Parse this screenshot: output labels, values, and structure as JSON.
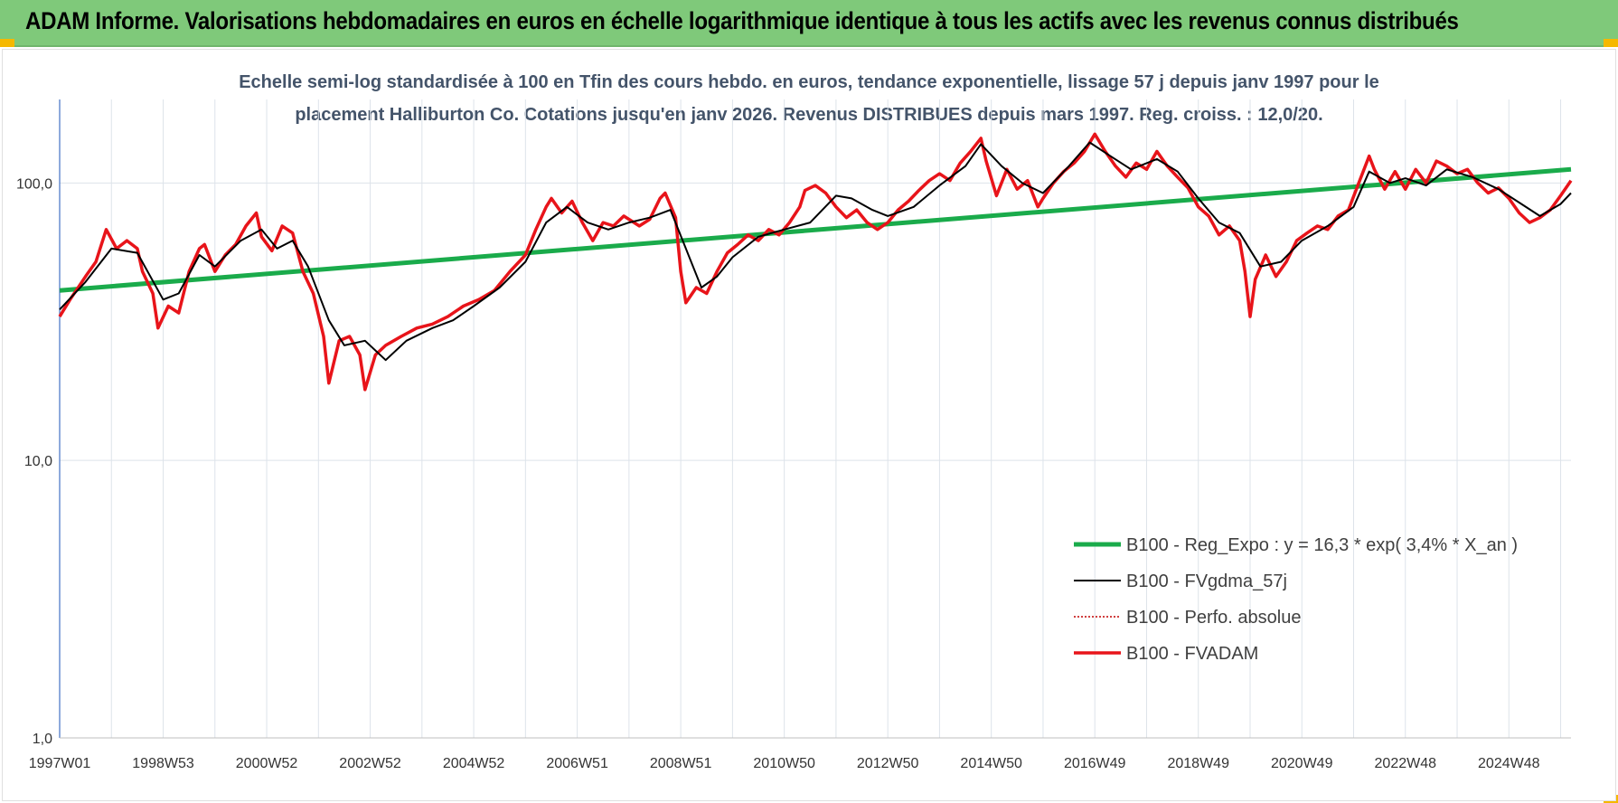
{
  "header": {
    "title": "ADAM Informe. Valorisations hebdomadaires en euros en échelle logarithmique identique à tous les actifs avec les revenus connus distribués"
  },
  "colors": {
    "banner": "#7fc97a",
    "corner": "#f5b800",
    "title_text": "#44546a",
    "reg_expo": "#1aab4b",
    "fvgdma": "#000000",
    "perfo": "#c00000",
    "fvadam": "#e8141a",
    "grid": "#dde3ea"
  },
  "chart_data": {
    "type": "line",
    "title_line1": "Echelle semi-log standardisée à 100 en Tfin des cours hebdo. en euros, tendance exponentielle, lissage 57 j depuis janv 1997 pour le",
    "title_line2": "placement Halliburton Co. Cotations jusqu'en janv 2026.  Revenus DISTRIBUES depuis mars 1997. Reg. croiss. : 12,0/20.",
    "y_scale": "log",
    "ylim": [
      1,
      200
    ],
    "xlim": [
      1997.0,
      2026.2
    ],
    "grid": true,
    "legend_position": "bottom-right",
    "y_ticks": [
      {
        "value": 1,
        "label": "1,0"
      },
      {
        "value": 10,
        "label": "10,0"
      },
      {
        "value": 100,
        "label": "100,0"
      }
    ],
    "x_ticks": [
      {
        "value": 1997.0,
        "label": "1997W01"
      },
      {
        "value": 1999.0,
        "label": "1998W53"
      },
      {
        "value": 2001.0,
        "label": "2000W52"
      },
      {
        "value": 2003.0,
        "label": "2002W52"
      },
      {
        "value": 2005.0,
        "label": "2004W52"
      },
      {
        "value": 2007.0,
        "label": "2006W51"
      },
      {
        "value": 2009.0,
        "label": "2008W51"
      },
      {
        "value": 2011.0,
        "label": "2010W50"
      },
      {
        "value": 2013.0,
        "label": "2012W50"
      },
      {
        "value": 2015.0,
        "label": "2014W50"
      },
      {
        "value": 2017.0,
        "label": "2016W49"
      },
      {
        "value": 2019.0,
        "label": "2018W49"
      },
      {
        "value": 2021.0,
        "label": "2020W49"
      },
      {
        "value": 2023.0,
        "label": "2022W48"
      },
      {
        "value": 2025.0,
        "label": "2024W48"
      }
    ],
    "series": [
      {
        "name": "B100 - Reg_Expo : y = 16,3 * exp( 3,4% *  X_an )",
        "style": "solid-thick",
        "points": [
          [
            1997.0,
            41.0
          ],
          [
            2026.2,
            112.0
          ]
        ]
      },
      {
        "name": "B100 - FVgdma_57j",
        "style": "solid-thin",
        "points": [
          [
            1997.0,
            35
          ],
          [
            1997.5,
            44
          ],
          [
            1998.0,
            58
          ],
          [
            1998.5,
            56
          ],
          [
            1999.0,
            38
          ],
          [
            1999.3,
            40
          ],
          [
            1999.7,
            55
          ],
          [
            2000.0,
            50
          ],
          [
            2000.5,
            62
          ],
          [
            2000.9,
            68
          ],
          [
            2001.2,
            58
          ],
          [
            2001.5,
            62
          ],
          [
            2001.8,
            50
          ],
          [
            2002.2,
            32
          ],
          [
            2002.5,
            26
          ],
          [
            2002.9,
            27
          ],
          [
            2003.3,
            23
          ],
          [
            2003.7,
            27
          ],
          [
            2004.2,
            30
          ],
          [
            2004.6,
            32
          ],
          [
            2005.0,
            36
          ],
          [
            2005.5,
            42
          ],
          [
            2006.0,
            52
          ],
          [
            2006.4,
            72
          ],
          [
            2006.8,
            82
          ],
          [
            2007.2,
            72
          ],
          [
            2007.6,
            68
          ],
          [
            2008.0,
            72
          ],
          [
            2008.4,
            75
          ],
          [
            2008.8,
            80
          ],
          [
            2009.1,
            58
          ],
          [
            2009.4,
            42
          ],
          [
            2009.7,
            46
          ],
          [
            2010.0,
            54
          ],
          [
            2010.5,
            64
          ],
          [
            2011.0,
            68
          ],
          [
            2011.5,
            72
          ],
          [
            2012.0,
            90
          ],
          [
            2012.3,
            88
          ],
          [
            2012.7,
            80
          ],
          [
            2013.0,
            76
          ],
          [
            2013.5,
            82
          ],
          [
            2014.0,
            98
          ],
          [
            2014.5,
            115
          ],
          [
            2014.8,
            138
          ],
          [
            2015.2,
            115
          ],
          [
            2015.6,
            100
          ],
          [
            2016.0,
            92
          ],
          [
            2016.5,
            115
          ],
          [
            2016.9,
            140
          ],
          [
            2017.3,
            125
          ],
          [
            2017.7,
            112
          ],
          [
            2018.2,
            122
          ],
          [
            2018.6,
            110
          ],
          [
            2019.0,
            88
          ],
          [
            2019.4,
            72
          ],
          [
            2019.8,
            66
          ],
          [
            2020.2,
            50
          ],
          [
            2020.6,
            52
          ],
          [
            2021.0,
            62
          ],
          [
            2021.5,
            70
          ],
          [
            2022.0,
            82
          ],
          [
            2022.3,
            110
          ],
          [
            2022.7,
            100
          ],
          [
            2023.0,
            104
          ],
          [
            2023.4,
            98
          ],
          [
            2023.8,
            112
          ],
          [
            2024.3,
            105
          ],
          [
            2024.8,
            95
          ],
          [
            2025.2,
            85
          ],
          [
            2025.6,
            76
          ],
          [
            2026.0,
            84
          ],
          [
            2026.2,
            92
          ]
        ]
      },
      {
        "name": "B100 - Perfo. absolue",
        "style": "dotted",
        "points": []
      },
      {
        "name": "B100 - FVADAM",
        "style": "solid-thick",
        "points": [
          [
            1997.0,
            33
          ],
          [
            1997.2,
            38
          ],
          [
            1997.5,
            46
          ],
          [
            1997.7,
            52
          ],
          [
            1997.9,
            68
          ],
          [
            1998.1,
            58
          ],
          [
            1998.3,
            62
          ],
          [
            1998.5,
            58
          ],
          [
            1998.6,
            48
          ],
          [
            1998.8,
            40
          ],
          [
            1998.9,
            30
          ],
          [
            1999.1,
            36
          ],
          [
            1999.3,
            34
          ],
          [
            1999.5,
            48
          ],
          [
            1999.7,
            58
          ],
          [
            1999.8,
            60
          ],
          [
            2000.0,
            48
          ],
          [
            2000.2,
            55
          ],
          [
            2000.4,
            60
          ],
          [
            2000.6,
            70
          ],
          [
            2000.8,
            78
          ],
          [
            2000.9,
            64
          ],
          [
            2001.1,
            57
          ],
          [
            2001.3,
            70
          ],
          [
            2001.5,
            66
          ],
          [
            2001.7,
            48
          ],
          [
            2001.9,
            40
          ],
          [
            2002.1,
            28
          ],
          [
            2002.2,
            19
          ],
          [
            2002.4,
            27
          ],
          [
            2002.6,
            28
          ],
          [
            2002.8,
            24
          ],
          [
            2002.9,
            18
          ],
          [
            2003.1,
            24
          ],
          [
            2003.3,
            26
          ],
          [
            2003.6,
            28
          ],
          [
            2003.9,
            30
          ],
          [
            2004.2,
            31
          ],
          [
            2004.5,
            33
          ],
          [
            2004.8,
            36
          ],
          [
            2005.1,
            38
          ],
          [
            2005.4,
            41
          ],
          [
            2005.7,
            48
          ],
          [
            2006.0,
            55
          ],
          [
            2006.2,
            68
          ],
          [
            2006.4,
            82
          ],
          [
            2006.5,
            88
          ],
          [
            2006.7,
            78
          ],
          [
            2006.9,
            86
          ],
          [
            2007.1,
            72
          ],
          [
            2007.3,
            62
          ],
          [
            2007.5,
            72
          ],
          [
            2007.7,
            70
          ],
          [
            2007.9,
            76
          ],
          [
            2008.2,
            70
          ],
          [
            2008.4,
            74
          ],
          [
            2008.6,
            88
          ],
          [
            2008.7,
            92
          ],
          [
            2008.9,
            75
          ],
          [
            2009.0,
            48
          ],
          [
            2009.1,
            37
          ],
          [
            2009.3,
            42
          ],
          [
            2009.5,
            40
          ],
          [
            2009.7,
            48
          ],
          [
            2009.9,
            56
          ],
          [
            2010.1,
            60
          ],
          [
            2010.3,
            65
          ],
          [
            2010.5,
            62
          ],
          [
            2010.7,
            68
          ],
          [
            2010.9,
            65
          ],
          [
            2011.1,
            72
          ],
          [
            2011.3,
            82
          ],
          [
            2011.4,
            94
          ],
          [
            2011.6,
            98
          ],
          [
            2011.8,
            92
          ],
          [
            2012.0,
            82
          ],
          [
            2012.2,
            75
          ],
          [
            2012.4,
            80
          ],
          [
            2012.6,
            72
          ],
          [
            2012.8,
            68
          ],
          [
            2013.0,
            72
          ],
          [
            2013.2,
            80
          ],
          [
            2013.4,
            86
          ],
          [
            2013.6,
            94
          ],
          [
            2013.8,
            102
          ],
          [
            2014.0,
            108
          ],
          [
            2014.2,
            102
          ],
          [
            2014.4,
            118
          ],
          [
            2014.6,
            130
          ],
          [
            2014.8,
            145
          ],
          [
            2014.9,
            120
          ],
          [
            2015.1,
            90
          ],
          [
            2015.3,
            112
          ],
          [
            2015.5,
            95
          ],
          [
            2015.7,
            102
          ],
          [
            2015.9,
            82
          ],
          [
            2016.0,
            88
          ],
          [
            2016.2,
            100
          ],
          [
            2016.4,
            110
          ],
          [
            2016.6,
            118
          ],
          [
            2016.8,
            130
          ],
          [
            2017.0,
            150
          ],
          [
            2017.2,
            130
          ],
          [
            2017.4,
            115
          ],
          [
            2017.6,
            105
          ],
          [
            2017.8,
            118
          ],
          [
            2018.0,
            112
          ],
          [
            2018.2,
            130
          ],
          [
            2018.4,
            115
          ],
          [
            2018.6,
            105
          ],
          [
            2018.8,
            96
          ],
          [
            2019.0,
            82
          ],
          [
            2019.2,
            76
          ],
          [
            2019.4,
            65
          ],
          [
            2019.6,
            70
          ],
          [
            2019.8,
            62
          ],
          [
            2019.9,
            48
          ],
          [
            2020.0,
            33
          ],
          [
            2020.1,
            45
          ],
          [
            2020.3,
            55
          ],
          [
            2020.5,
            46
          ],
          [
            2020.7,
            52
          ],
          [
            2020.9,
            62
          ],
          [
            2021.1,
            66
          ],
          [
            2021.3,
            70
          ],
          [
            2021.5,
            68
          ],
          [
            2021.7,
            76
          ],
          [
            2021.9,
            80
          ],
          [
            2022.1,
            100
          ],
          [
            2022.3,
            125
          ],
          [
            2022.4,
            112
          ],
          [
            2022.6,
            95
          ],
          [
            2022.8,
            110
          ],
          [
            2023.0,
            95
          ],
          [
            2023.2,
            112
          ],
          [
            2023.4,
            100
          ],
          [
            2023.6,
            120
          ],
          [
            2023.8,
            115
          ],
          [
            2024.0,
            108
          ],
          [
            2024.2,
            112
          ],
          [
            2024.4,
            100
          ],
          [
            2024.6,
            92
          ],
          [
            2024.8,
            96
          ],
          [
            2025.0,
            88
          ],
          [
            2025.2,
            78
          ],
          [
            2025.4,
            72
          ],
          [
            2025.6,
            75
          ],
          [
            2025.8,
            80
          ],
          [
            2026.0,
            90
          ],
          [
            2026.2,
            102
          ]
        ]
      }
    ]
  }
}
